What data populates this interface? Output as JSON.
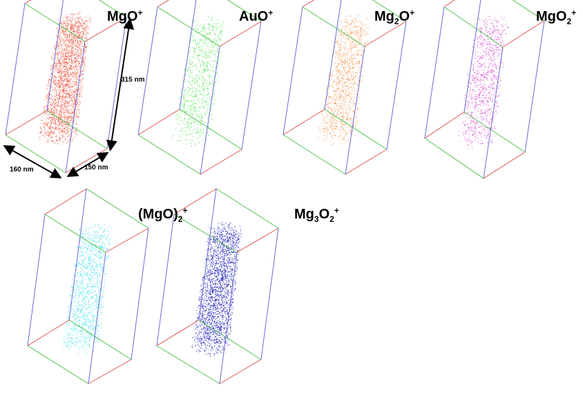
{
  "dimensions": {
    "height_label": "315 nm",
    "width_label": "160 nm",
    "depth_label": "150 nm"
  },
  "ions": [
    {
      "id": "mgo",
      "base": "MgO",
      "sub1": "",
      "mid": "",
      "sub2": "",
      "charge": "+",
      "color": "#e8432a",
      "density": 1.0
    },
    {
      "id": "auo",
      "base": "AuO",
      "sub1": "",
      "mid": "",
      "sub2": "",
      "charge": "+",
      "color": "#2fdc2f",
      "density": 0.35
    },
    {
      "id": "mg2o",
      "base": "Mg",
      "sub1": "2",
      "mid": "O",
      "sub2": "",
      "charge": "+",
      "color": "#f07d2a",
      "density": 0.45
    },
    {
      "id": "mgo2",
      "base": "MgO",
      "sub1": "",
      "mid": "",
      "sub2": "2",
      "charge": "+",
      "color": "#cc2ec2",
      "density": 0.4
    },
    {
      "id": "mgo_2",
      "base": "(MgO)",
      "sub1": "",
      "mid": "",
      "sub2": "2",
      "charge": "+",
      "color": "#34dbe8",
      "density": 0.55
    },
    {
      "id": "mg3o2",
      "base": "Mg",
      "sub1": "3",
      "mid": "O",
      "sub2": "2",
      "charge": "+",
      "color": "#1a1ab8",
      "density": 1.0
    }
  ]
}
